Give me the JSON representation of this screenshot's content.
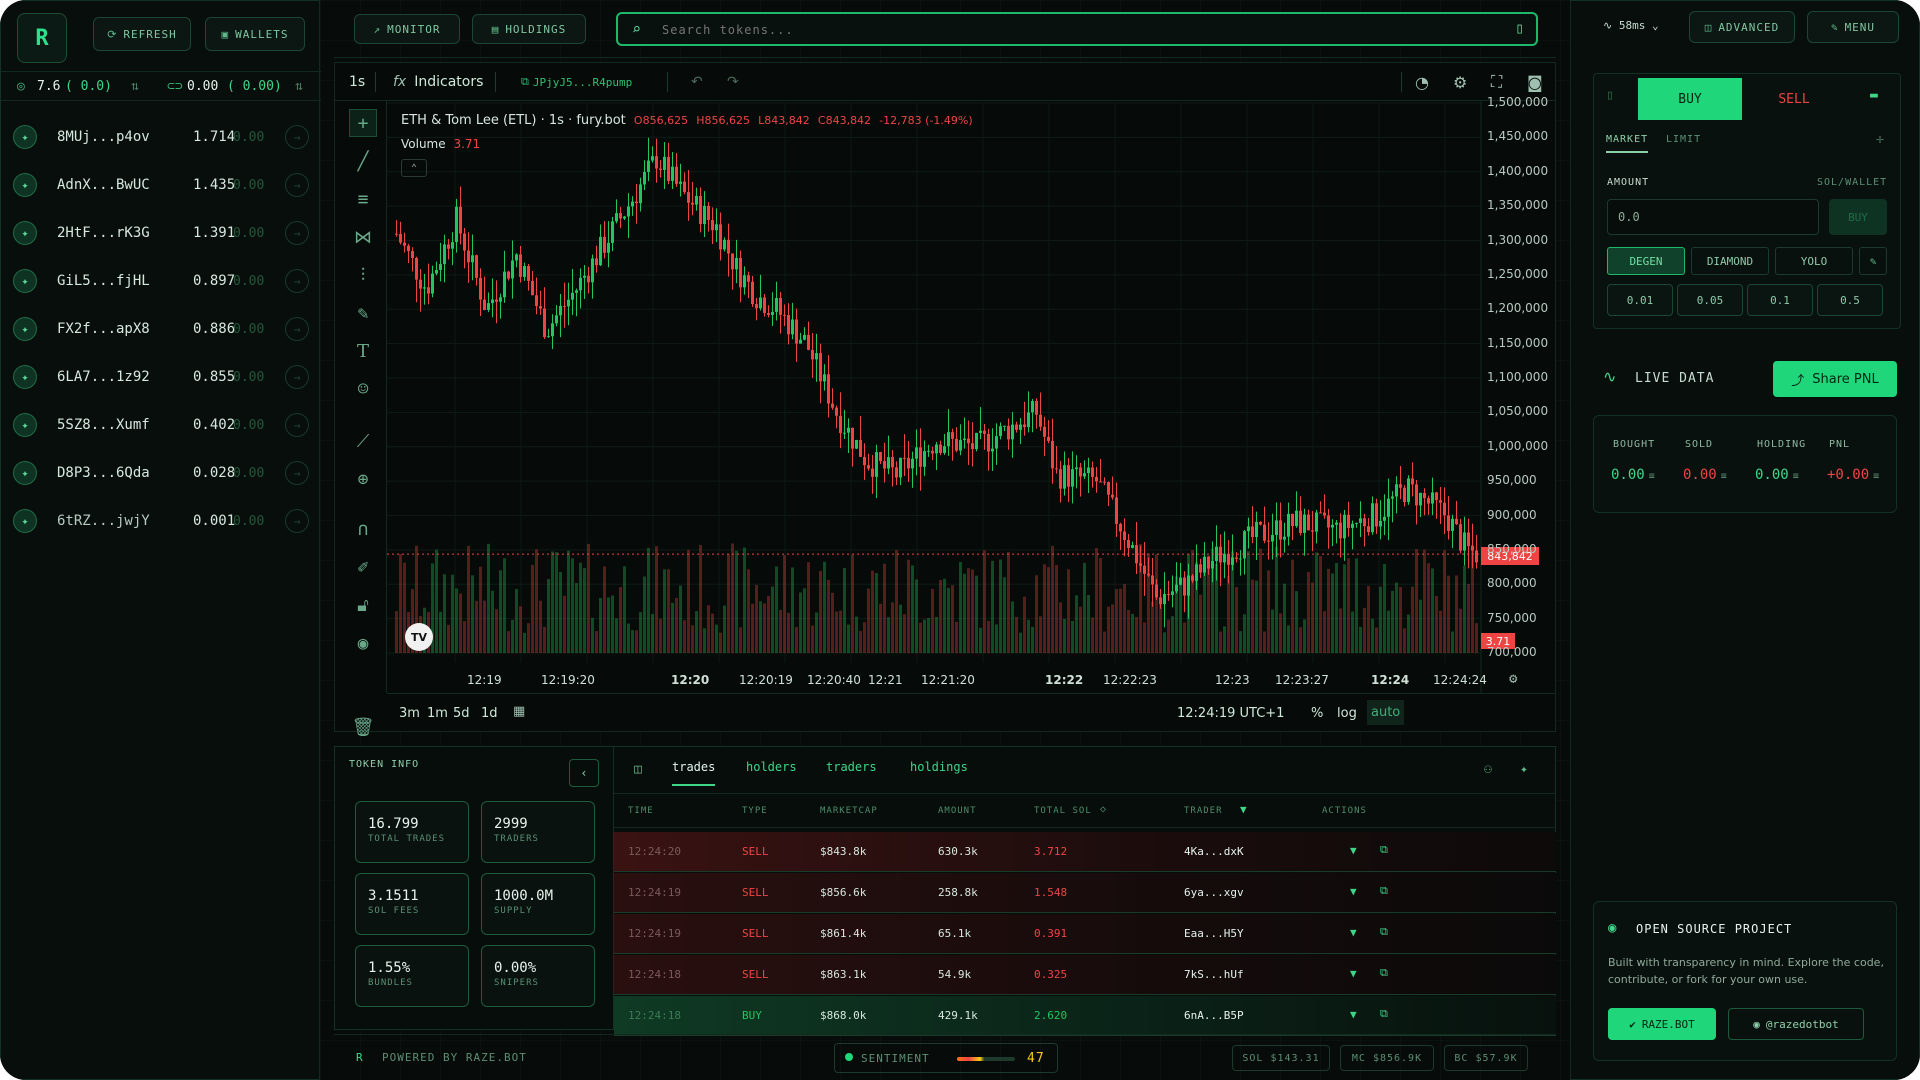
{
  "header": {
    "refresh": "REFRESH",
    "wallets": "WALLETS",
    "monitor": "MONITOR",
    "holdings": "HOLDINGS",
    "search_placeholder": "Search tokens...",
    "latency": "58ms",
    "advanced": "ADVANCED",
    "menu": "MENU"
  },
  "balances": {
    "sol": "7.6",
    "sol_delta": "( 0.0)",
    "usd": "0.00",
    "usd_delta": "( 0.00)"
  },
  "wallets": [
    {
      "name": "8MUj...p4ov",
      "balance": "1.714",
      "zero": "0.00"
    },
    {
      "name": "AdnX...BwUC",
      "balance": "1.435",
      "zero": "0.00"
    },
    {
      "name": "2HtF...rK3G",
      "balance": "1.391",
      "zero": "0.00"
    },
    {
      "name": "GiL5...fjHL",
      "balance": "0.897",
      "zero": "0.00"
    },
    {
      "name": "FX2f...apX8",
      "balance": "0.886",
      "zero": "0.00"
    },
    {
      "name": "6LA7...1z92",
      "balance": "0.855",
      "zero": "0.00"
    },
    {
      "name": "5SZ8...Xumf",
      "balance": "0.402",
      "zero": "0.00"
    },
    {
      "name": "D8P3...6Qda",
      "balance": "0.028",
      "zero": "0.00"
    },
    {
      "name": "6tRZ...jwjY",
      "balance": "0.001",
      "zero": "0.00"
    }
  ],
  "chart": {
    "interval": "1s",
    "indicators": "Indicators",
    "contract": "JPjyJ5...R4pump",
    "title": "ETH & Tom Lee (ETL) · 1s · fury.bot",
    "o": "O856,625",
    "h": "H856,625",
    "l": "L843,842",
    "c": "C843,842",
    "chg": "-12,783 (-1.49%)",
    "volume_label": "Volume",
    "volume_value": "3.71",
    "price_tag": "843,842",
    "vol_tag": "3.71",
    "clock": "12:24:19 UTC+1",
    "pct": "%",
    "log": "log",
    "auto": "auto",
    "ranges": [
      "3m",
      "1m",
      "5d",
      "1d"
    ]
  },
  "chart_data": {
    "type": "candlestick",
    "yticks": [
      "1,500,000",
      "1,450,000",
      "1,400,000",
      "1,350,000",
      "1,300,000",
      "1,250,000",
      "1,200,000",
      "1,150,000",
      "1,100,000",
      "1,050,000",
      "1,000,000",
      "950,000",
      "900,000",
      "850,000",
      "800,000",
      "750,000",
      "700,000"
    ],
    "xticks": [
      "12:19",
      "12:19:20",
      "12:20",
      "12:20:19",
      "12:20:40",
      "12:21",
      "12:21:20",
      "12:22",
      "12:22:23",
      "12:23",
      "12:23:27",
      "12:24",
      "12:24:24"
    ],
    "ylim": [
      700000,
      1500000
    ],
    "last": 843842
  },
  "trade": {
    "buy": "BUY",
    "sell": "SELL",
    "market": "MARKET",
    "limit": "LIMIT",
    "amount": "AMOUNT",
    "sol_wallet": "SOL/WALLET",
    "amount_value": "0.0",
    "buy_btn": "BUY",
    "modes": [
      "DEGEN",
      "DIAMOND",
      "YOLO"
    ],
    "quick": [
      "0.01",
      "0.05",
      "0.1",
      "0.5"
    ]
  },
  "live": {
    "title": "LIVE DATA",
    "share": "Share PNL",
    "labels": [
      "BOUGHT",
      "SOLD",
      "HOLDING",
      "PNL"
    ],
    "values": [
      "0.00",
      "0.00",
      "0.00",
      "+0.00"
    ]
  },
  "oss": {
    "title": "OPEN SOURCE PROJECT",
    "desc1": "Built with transparency in mind. Explore the code,",
    "desc2": "contribute, or fork for your own use.",
    "btn1": "RAZE.BOT",
    "btn2": "@razedotbot"
  },
  "token_info": {
    "title": "TOKEN INFO",
    "stats": [
      {
        "v": "16.799",
        "l": "TOTAL TRADES"
      },
      {
        "v": "2999",
        "l": "TRADERS"
      },
      {
        "v": "3.1511",
        "l": "SOL FEES"
      },
      {
        "v": "1000.0M",
        "l": "SUPPLY"
      },
      {
        "v": "1.55%",
        "l": "BUNDLES"
      },
      {
        "v": "0.00%",
        "l": "SNIPERS"
      }
    ]
  },
  "tabs": [
    "trades",
    "holders",
    "traders",
    "holdings"
  ],
  "table": {
    "headers": [
      "TIME",
      "TYPE",
      "MARKETCAP",
      "AMOUNT",
      "TOTAL SOL",
      "TRADER",
      "ACTIONS"
    ],
    "rows": [
      {
        "time": "12:24:20",
        "type": "SELL",
        "mc": "$843.8k",
        "amount": "630.3k",
        "sol": "3.712",
        "trader": "4Ka...dxK"
      },
      {
        "time": "12:24:19",
        "type": "SELL",
        "mc": "$856.6k",
        "amount": "258.8k",
        "sol": "1.548",
        "trader": "6ya...xgv"
      },
      {
        "time": "12:24:19",
        "type": "SELL",
        "mc": "$861.4k",
        "amount": "65.1k",
        "sol": "0.391",
        "trader": "Eaa...H5Y"
      },
      {
        "time": "12:24:18",
        "type": "SELL",
        "mc": "$863.1k",
        "amount": "54.9k",
        "sol": "0.325",
        "trader": "7kS...hUf"
      },
      {
        "time": "12:24:18",
        "type": "BUY",
        "mc": "$868.0k",
        "amount": "429.1k",
        "sol": "2.620",
        "trader": "6nA...B5P"
      }
    ]
  },
  "footer": {
    "powered": "POWERED BY RAZE.BOT",
    "sentiment": "SENTIMENT",
    "sentiment_value": "47",
    "sol": "SOL $143.31",
    "mc": "MC $856.9K",
    "bc": "BC $57.9K"
  },
  "colors": {
    "accent": "#1fd67a",
    "sell": "#ef4444",
    "buy": "#22c55e"
  }
}
